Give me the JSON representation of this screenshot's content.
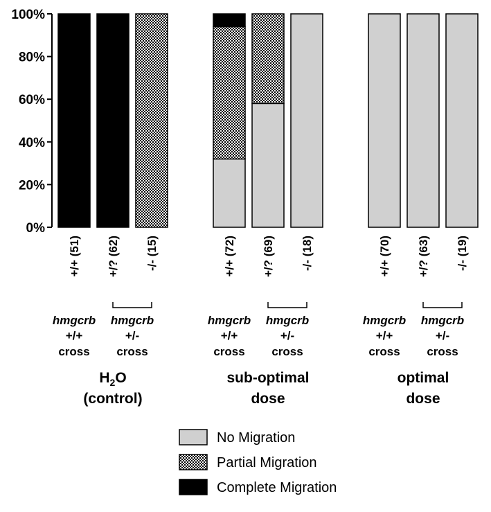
{
  "chart_data": {
    "type": "bar",
    "stacked": true,
    "percent_stacked": true,
    "ylim": [
      0,
      100
    ],
    "yticks": [
      "0%",
      "20%",
      "40%",
      "60%",
      "80%",
      "100%"
    ],
    "categories": [
      "+/+ (51)",
      "+/? (62)",
      "-/- (15)",
      "+/+ (72)",
      "+/? (69)",
      "-/- (18)",
      "+/+ (70)",
      "+/? (63)",
      "-/- (19)"
    ],
    "series": [
      {
        "name": "No Migration",
        "color": "#d0d0d0",
        "pattern": "solid-gray",
        "values": [
          0,
          0,
          0,
          32,
          58,
          100,
          100,
          100,
          100
        ]
      },
      {
        "name": "Partial Migration",
        "color": "#999999",
        "pattern": "checker",
        "values": [
          0,
          0,
          100,
          62,
          42,
          0,
          0,
          0,
          0
        ]
      },
      {
        "name": "Complete Migration",
        "color": "#000000",
        "pattern": "solid-black",
        "values": [
          100,
          100,
          0,
          6,
          0,
          0,
          0,
          0,
          0
        ]
      }
    ],
    "cross_labels": [
      {
        "gene": "hmgcrb",
        "genotype": "+/+",
        "word": "cross"
      },
      {
        "gene": "hmgcrb",
        "genotype": "+/-",
        "word": "cross"
      },
      {
        "gene": "hmgcrb",
        "genotype": "+/+",
        "word": "cross"
      },
      {
        "gene": "hmgcrb",
        "genotype": "+/-",
        "word": "cross"
      },
      {
        "gene": "hmgcrb",
        "genotype": "+/+",
        "word": "cross"
      },
      {
        "gene": "hmgcrb",
        "genotype": "+/-",
        "word": "cross"
      }
    ],
    "groups": [
      {
        "line1": "H",
        "sub": "2",
        "line1_rest": "O",
        "line2": "(control)"
      },
      {
        "line1": "sub-optimal",
        "sub": "",
        "line1_rest": "",
        "line2": "dose"
      },
      {
        "line1": "optimal",
        "sub": "",
        "line1_rest": "",
        "line2": "dose"
      }
    ],
    "legend_position": "bottom",
    "grid": false
  }
}
